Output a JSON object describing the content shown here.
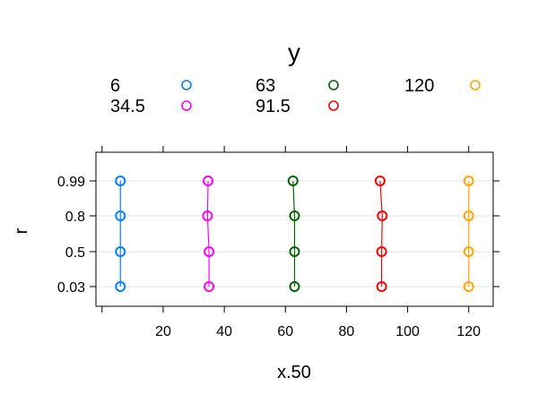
{
  "chart_data": {
    "type": "line",
    "xlabel": "x.50",
    "ylabel": "r",
    "xlim": [
      -2,
      128
    ],
    "x_ticks": [
      20,
      40,
      60,
      80,
      100,
      120
    ],
    "categories": [
      "0.03",
      "0.5",
      "0.8",
      "0.99"
    ],
    "grid": true,
    "legend": {
      "title": "y",
      "placement": "top",
      "entries": [
        "6",
        "63",
        "120",
        "34.5",
        "91.5"
      ]
    },
    "series": [
      {
        "name": "6",
        "color": "#0080ff",
        "points": [
          {
            "x": 6,
            "r": "0.03"
          },
          {
            "x": 6,
            "r": "0.5"
          },
          {
            "x": 6,
            "r": "0.8"
          },
          {
            "x": 6,
            "r": "0.99"
          }
        ]
      },
      {
        "name": "34.5",
        "color": "#ff00ff",
        "points": [
          {
            "x": 35,
            "r": "0.03"
          },
          {
            "x": 35,
            "r": "0.5"
          },
          {
            "x": 34.5,
            "r": "0.8"
          },
          {
            "x": 34.7,
            "r": "0.99"
          }
        ]
      },
      {
        "name": "63",
        "color": "#006400",
        "points": [
          {
            "x": 63,
            "r": "0.03"
          },
          {
            "x": 63,
            "r": "0.5"
          },
          {
            "x": 63,
            "r": "0.8"
          },
          {
            "x": 62.5,
            "r": "0.99"
          }
        ]
      },
      {
        "name": "91.5",
        "color": "#ff0000",
        "points": [
          {
            "x": 91.5,
            "r": "0.03"
          },
          {
            "x": 91.5,
            "r": "0.5"
          },
          {
            "x": 91.7,
            "r": "0.8"
          },
          {
            "x": 91,
            "r": "0.99"
          }
        ]
      },
      {
        "name": "120",
        "color": "#ffa500",
        "points": [
          {
            "x": 120,
            "r": "0.03"
          },
          {
            "x": 120,
            "r": "0.5"
          },
          {
            "x": 120,
            "r": "0.8"
          },
          {
            "x": 120,
            "r": "0.99"
          }
        ]
      }
    ]
  }
}
